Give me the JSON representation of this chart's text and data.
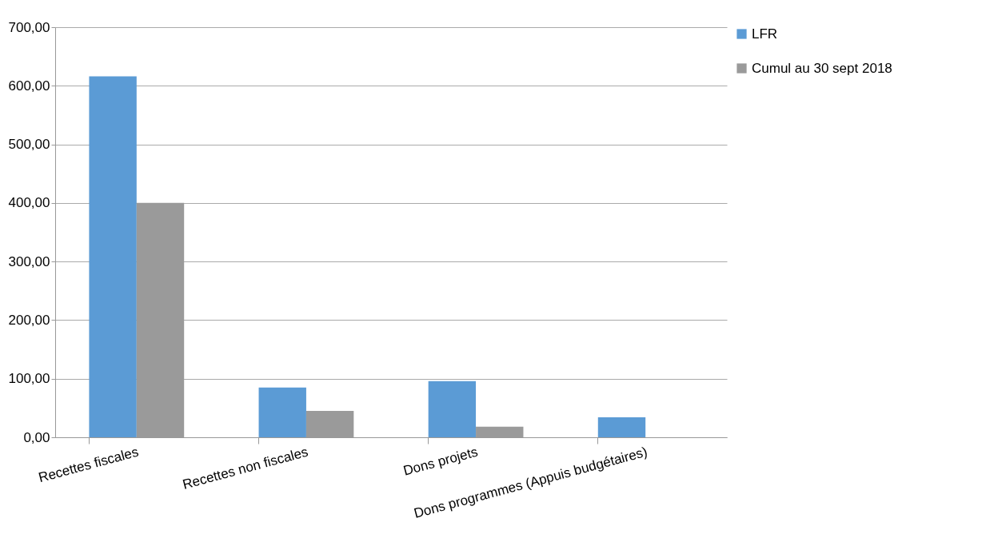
{
  "chart_data": {
    "type": "bar",
    "categories": [
      "Recettes fiscales",
      "Recettes non fiscales",
      "Dons projets",
      "Dons programmes (Appuis budgétaires)"
    ],
    "series": [
      {
        "name": "LFR",
        "color": "#5b9bd5",
        "values": [
          616,
          85,
          96,
          34
        ]
      },
      {
        "name": "Cumul au 30 sept 2018",
        "color": "#9a9a9a",
        "values": [
          400,
          45,
          18,
          null
        ]
      }
    ],
    "ylim": [
      0,
      700
    ],
    "yticks": [
      {
        "value": 0,
        "label": "0,00"
      },
      {
        "value": 100,
        "label": "100,00"
      },
      {
        "value": 200,
        "label": "200,00"
      },
      {
        "value": 300,
        "label": "300,00"
      },
      {
        "value": 400,
        "label": "400,00"
      },
      {
        "value": 500,
        "label": "500,00"
      },
      {
        "value": 600,
        "label": "600,00"
      },
      {
        "value": 700,
        "label": "700,00"
      }
    ],
    "grid": "y",
    "legend": "right"
  }
}
